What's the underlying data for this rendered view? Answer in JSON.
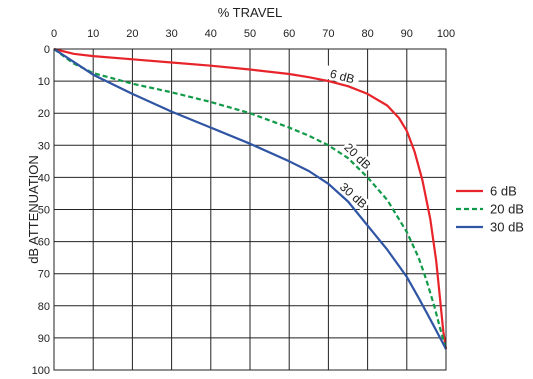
{
  "chart_data": {
    "type": "line",
    "xlabel": "% TRAVEL",
    "ylabel": "dB ATTENUATION",
    "x_axis_position": "top",
    "y_axis_inverted": true,
    "xlim": [
      0,
      100
    ],
    "ylim": [
      0,
      100
    ],
    "x_ticks": [
      0,
      10,
      20,
      30,
      40,
      50,
      60,
      70,
      80,
      90,
      100
    ],
    "y_ticks": [
      0,
      10,
      20,
      30,
      40,
      50,
      60,
      70,
      80,
      90,
      100
    ],
    "grid": true,
    "legend_position": "right",
    "series": [
      {
        "name": "6 dB",
        "color": "#e8242b",
        "dash": "solid",
        "curve_label": "6 dB",
        "points": [
          [
            0,
            0
          ],
          [
            5,
            1.5
          ],
          [
            10,
            2.2
          ],
          [
            20,
            3.2
          ],
          [
            30,
            4.2
          ],
          [
            40,
            5.2
          ],
          [
            50,
            6.4
          ],
          [
            60,
            7.8
          ],
          [
            65,
            8.8
          ],
          [
            70,
            10
          ],
          [
            75,
            11.6
          ],
          [
            80,
            14
          ],
          [
            85,
            17.6
          ],
          [
            88,
            21.5
          ],
          [
            90,
            25.5
          ],
          [
            92,
            32
          ],
          [
            94,
            41
          ],
          [
            96,
            53
          ],
          [
            97.5,
            66
          ],
          [
            98.5,
            78
          ],
          [
            99.3,
            88
          ],
          [
            100,
            93.5
          ]
        ]
      },
      {
        "name": "20 dB",
        "color": "#119a48",
        "dash": "dashed",
        "curve_label": "20 dB",
        "points": [
          [
            0,
            0
          ],
          [
            5,
            4.5
          ],
          [
            10,
            7.5
          ],
          [
            20,
            10.8
          ],
          [
            30,
            13.5
          ],
          [
            40,
            16.5
          ],
          [
            50,
            20
          ],
          [
            60,
            24.5
          ],
          [
            65,
            27
          ],
          [
            70,
            30
          ],
          [
            75,
            34
          ],
          [
            80,
            40
          ],
          [
            85,
            47
          ],
          [
            90,
            57
          ],
          [
            93,
            65
          ],
          [
            95,
            72
          ],
          [
            97,
            80
          ],
          [
            98.5,
            87
          ],
          [
            100,
            93.5
          ]
        ]
      },
      {
        "name": "30 dB",
        "color": "#2f55a4",
        "dash": "solid",
        "curve_label": "30 dB",
        "points": [
          [
            0,
            0
          ],
          [
            5,
            4
          ],
          [
            10,
            8
          ],
          [
            20,
            14
          ],
          [
            30,
            19.5
          ],
          [
            40,
            24.5
          ],
          [
            50,
            29.5
          ],
          [
            60,
            35
          ],
          [
            65,
            38
          ],
          [
            70,
            42
          ],
          [
            75,
            47.5
          ],
          [
            80,
            55
          ],
          [
            85,
            62.5
          ],
          [
            90,
            71
          ],
          [
            93,
            77.5
          ],
          [
            95,
            82
          ],
          [
            97,
            86.5
          ],
          [
            98.5,
            90
          ],
          [
            100,
            93.5
          ]
        ]
      }
    ]
  }
}
